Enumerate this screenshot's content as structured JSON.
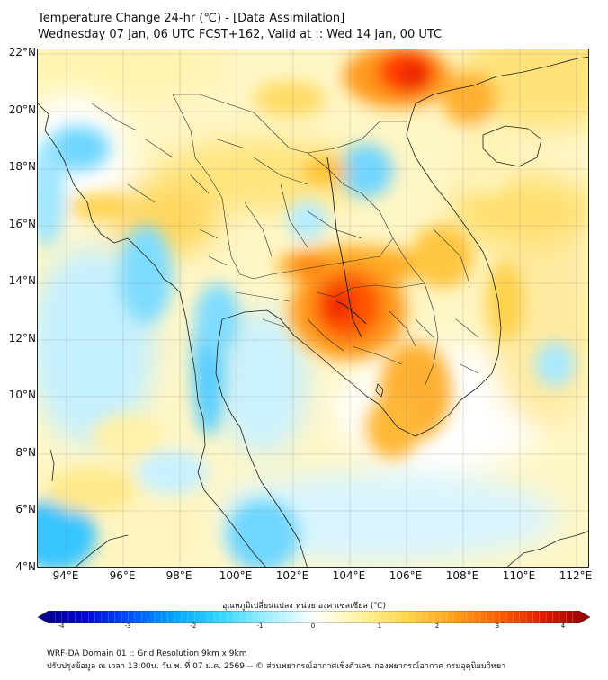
{
  "header": {
    "title_line1": "Temperature Change 24-hr (℃) - [Data Assimilation]",
    "title_line2": "Wednesday 07 Jan, 06 UTC FCST+162, Valid at :: Wed 14 Jan, 00 UTC"
  },
  "map": {
    "lat_labels": [
      "22°N",
      "20°N",
      "18°N",
      "16°N",
      "14°N",
      "12°N",
      "10°N",
      "8°N",
      "6°N",
      "4°N"
    ],
    "lon_labels": [
      "94°E",
      "96°E",
      "98°E",
      "100°E",
      "102°E",
      "104°E",
      "106°E",
      "108°E",
      "110°E",
      "112°E"
    ]
  },
  "colorbar": {
    "title": "อุณหภูมิเปลี่ยนแปลง หน่วย องศาเซลเซียส (℃)",
    "ticks": [
      "-4",
      "-3",
      "-2",
      "-1",
      "0",
      "1",
      "2",
      "3",
      "4"
    ],
    "vmin": -4,
    "vmax": 4,
    "colors": [
      "#00007f",
      "#0000d4",
      "#0050ff",
      "#00a8ff",
      "#34d8ff",
      "#a0eeff",
      "#ffffff",
      "#fff4a0",
      "#ffd54a",
      "#ffa21a",
      "#ff6000",
      "#e21800",
      "#8c0000"
    ]
  },
  "footer": {
    "line1": "WRF-DA Domain 01 :: Grid Resolution 9km x 9km",
    "line2": "ปรับปรุงข้อมูล ณ เวลา 13:00น. วัน พ. ที่ 07 ม.ค. 2569 -- © ส่วนพยากรณ์อากาศเชิงตัวเลข กองพยากรณ์อากาศ กรมอุตุนิยมวิทยา"
  }
}
